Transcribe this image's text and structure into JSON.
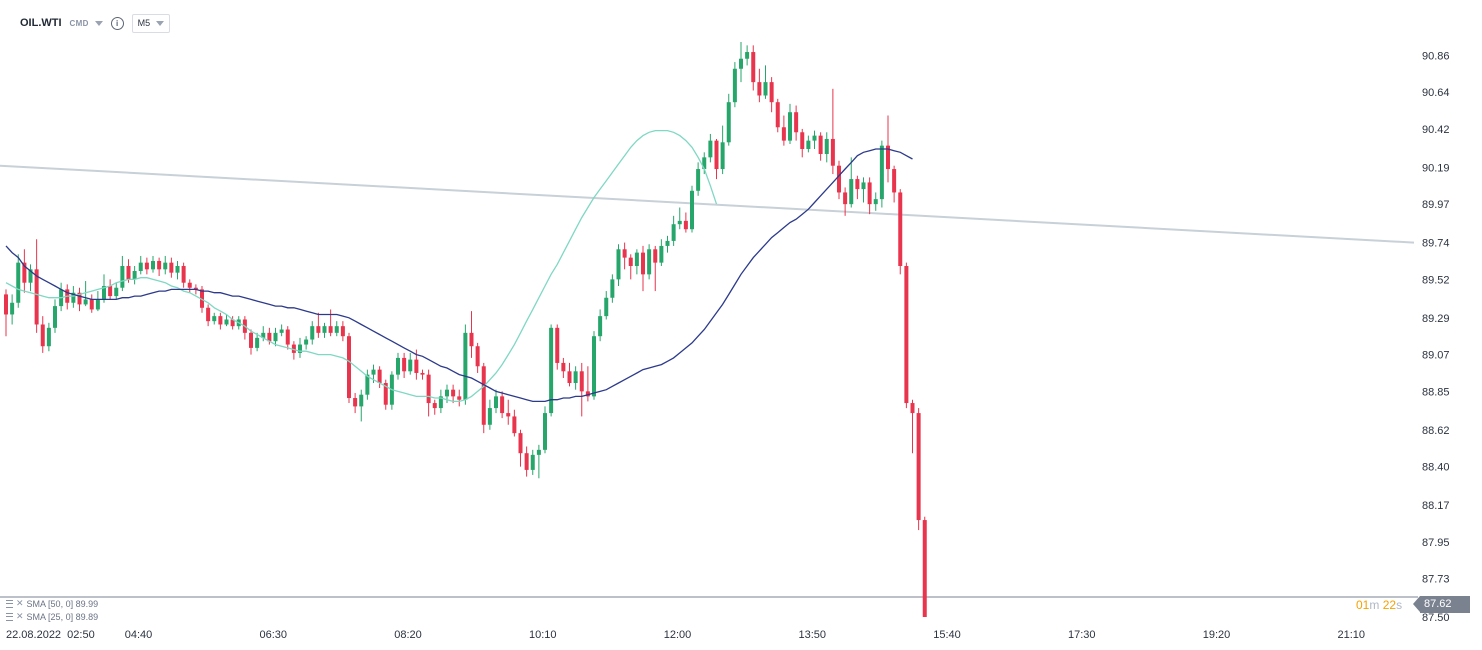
{
  "toolbar": {
    "symbol": "OIL.WTI",
    "market_tag": "CMD",
    "info_icon": "info-icon",
    "timeframe": "M5"
  },
  "legend": {
    "sma1": "SMA [50, 0] 89.99",
    "sma2": "SMA [25, 0] 89.89"
  },
  "countdown": {
    "minutes": "01",
    "m": "m",
    "seconds": "22",
    "s": "s"
  },
  "current_price": "87.62",
  "colors": {
    "up": "#26a66b",
    "down": "#e8344c",
    "sma50": "#2c3a8c",
    "sma25": "#7fd8c2",
    "trendline": "#c8d0d8",
    "price_line": "#7a8290"
  },
  "chart_data": {
    "type": "candlestick",
    "title": "",
    "xlabel": "",
    "ylabel": "",
    "ylim": [
      87.5,
      90.97
    ],
    "y_ticks": [
      "90.86",
      "90.64",
      "90.42",
      "90.19",
      "89.97",
      "89.74",
      "89.52",
      "89.29",
      "89.07",
      "88.85",
      "88.62",
      "88.40",
      "88.17",
      "87.95",
      "87.73",
      "87.50"
    ],
    "x_ticks": [
      "22.08.2022  02:50",
      "04:40",
      "06:30",
      "08:20",
      "10:10",
      "12:00",
      "13:50",
      "15:40",
      "17:30",
      "19:20",
      "21:10"
    ],
    "x_tick_index": [
      0,
      22,
      44,
      66,
      88,
      110,
      132,
      154,
      176,
      198,
      220
    ],
    "candles": [
      [
        89.43,
        89.31,
        89.46,
        89.18
      ],
      [
        89.31,
        89.38,
        89.43,
        89.25
      ],
      [
        89.38,
        89.62,
        89.67,
        89.35
      ],
      [
        89.62,
        89.5,
        89.7,
        89.44
      ],
      [
        89.5,
        89.58,
        89.61,
        89.45
      ],
      [
        89.58,
        89.25,
        89.76,
        89.2
      ],
      [
        89.25,
        89.12,
        89.3,
        89.08
      ],
      [
        89.12,
        89.23,
        89.26,
        89.09
      ],
      [
        89.23,
        89.36,
        89.4,
        89.2
      ],
      [
        89.36,
        89.46,
        89.5,
        89.33
      ],
      [
        89.46,
        89.38,
        89.49,
        89.34
      ],
      [
        89.38,
        89.44,
        89.48,
        89.35
      ],
      [
        89.44,
        89.37,
        89.47,
        89.33
      ],
      [
        89.37,
        89.4,
        89.51,
        89.36
      ],
      [
        89.4,
        89.34,
        89.43,
        89.32
      ],
      [
        89.34,
        89.4,
        89.45,
        89.33
      ],
      [
        89.4,
        89.48,
        89.55,
        89.38
      ],
      [
        89.48,
        89.42,
        89.52,
        89.4
      ],
      [
        89.42,
        89.47,
        89.5,
        89.4
      ],
      [
        89.47,
        89.6,
        89.66,
        89.45
      ],
      [
        89.6,
        89.52,
        89.64,
        89.5
      ],
      [
        89.52,
        89.57,
        89.6,
        89.49
      ],
      [
        89.57,
        89.62,
        89.66,
        89.55
      ],
      [
        89.62,
        89.58,
        89.65,
        89.55
      ],
      [
        89.58,
        89.63,
        89.66,
        89.56
      ],
      [
        89.63,
        89.58,
        89.65,
        89.54
      ],
      [
        89.58,
        89.62,
        89.66,
        89.55
      ],
      [
        89.62,
        89.56,
        89.65,
        89.53
      ],
      [
        89.56,
        89.6,
        89.63,
        89.52
      ],
      [
        89.6,
        89.5,
        89.62,
        89.47
      ],
      [
        89.5,
        89.47,
        89.52,
        89.44
      ],
      [
        89.47,
        89.46,
        89.49,
        89.43
      ],
      [
        89.46,
        89.35,
        89.48,
        89.32
      ],
      [
        89.35,
        89.27,
        89.37,
        89.24
      ],
      [
        89.27,
        89.3,
        89.32,
        89.25
      ],
      [
        89.3,
        89.25,
        89.32,
        89.22
      ],
      [
        89.25,
        89.28,
        89.31,
        89.24
      ],
      [
        89.28,
        89.24,
        89.3,
        89.22
      ],
      [
        89.24,
        89.28,
        89.3,
        89.22
      ],
      [
        89.28,
        89.2,
        89.3,
        89.16
      ],
      [
        89.2,
        89.11,
        89.22,
        89.07
      ],
      [
        89.11,
        89.17,
        89.2,
        89.09
      ],
      [
        89.17,
        89.2,
        89.24,
        89.15
      ],
      [
        89.2,
        89.15,
        89.23,
        89.13
      ],
      [
        89.15,
        89.2,
        89.23,
        89.12
      ],
      [
        89.2,
        89.22,
        89.25,
        89.18
      ],
      [
        89.22,
        89.13,
        89.24,
        89.1
      ],
      [
        89.13,
        89.08,
        89.15,
        89.04
      ],
      [
        89.08,
        89.13,
        89.17,
        89.05
      ],
      [
        89.13,
        89.16,
        89.18,
        89.1
      ],
      [
        89.16,
        89.24,
        89.27,
        89.13
      ],
      [
        89.24,
        89.2,
        89.32,
        89.17
      ],
      [
        89.2,
        89.24,
        89.26,
        89.17
      ],
      [
        89.24,
        89.2,
        89.34,
        89.18
      ],
      [
        89.2,
        89.24,
        89.27,
        89.18
      ],
      [
        89.24,
        89.18,
        89.27,
        89.15
      ],
      [
        89.18,
        88.81,
        89.2,
        88.78
      ],
      [
        88.81,
        88.76,
        88.84,
        88.72
      ],
      [
        88.76,
        88.83,
        88.86,
        88.67
      ],
      [
        88.83,
        88.95,
        88.98,
        88.8
      ],
      [
        88.95,
        88.98,
        89.01,
        88.9
      ],
      [
        88.98,
        88.9,
        89.0,
        88.87
      ],
      [
        88.9,
        88.77,
        88.92,
        88.74
      ],
      [
        88.77,
        88.95,
        88.97,
        88.74
      ],
      [
        88.95,
        89.05,
        89.08,
        88.92
      ],
      [
        89.05,
        88.97,
        89.08,
        88.93
      ],
      [
        88.97,
        89.04,
        89.08,
        88.95
      ],
      [
        89.04,
        88.96,
        89.1,
        88.92
      ],
      [
        88.96,
        88.95,
        88.98,
        88.92
      ],
      [
        88.95,
        88.78,
        88.98,
        88.7
      ],
      [
        88.78,
        88.75,
        88.8,
        88.71
      ],
      [
        88.75,
        88.82,
        88.86,
        88.72
      ],
      [
        88.82,
        88.86,
        88.89,
        88.78
      ],
      [
        88.86,
        88.82,
        88.89,
        88.78
      ],
      [
        88.82,
        88.8,
        88.86,
        88.76
      ],
      [
        88.8,
        89.2,
        89.25,
        88.77
      ],
      [
        89.2,
        89.12,
        89.33,
        89.05
      ],
      [
        89.12,
        89.0,
        89.14,
        88.96
      ],
      [
        89.0,
        88.65,
        89.02,
        88.6
      ],
      [
        88.65,
        88.75,
        88.8,
        88.62
      ],
      [
        88.75,
        88.82,
        88.86,
        88.72
      ],
      [
        88.82,
        88.72,
        88.85,
        88.69
      ],
      [
        88.72,
        88.7,
        88.8,
        88.65
      ],
      [
        88.7,
        88.6,
        88.74,
        88.58
      ],
      [
        88.6,
        88.48,
        88.62,
        88.4
      ],
      [
        88.48,
        88.38,
        88.52,
        88.34
      ],
      [
        88.38,
        88.47,
        88.5,
        88.35
      ],
      [
        88.47,
        88.5,
        88.53,
        88.33
      ],
      [
        88.5,
        88.72,
        88.76,
        88.48
      ],
      [
        88.72,
        89.23,
        89.25,
        88.7
      ],
      [
        89.23,
        89.02,
        89.25,
        88.98
      ],
      [
        89.02,
        88.97,
        89.05,
        88.93
      ],
      [
        88.97,
        88.9,
        89.02,
        88.88
      ],
      [
        88.9,
        88.97,
        89.0,
        88.86
      ],
      [
        88.97,
        88.85,
        89.02,
        88.7
      ],
      [
        88.85,
        88.82,
        89.0,
        88.79
      ],
      [
        88.82,
        89.18,
        89.21,
        88.8
      ],
      [
        89.18,
        89.3,
        89.34,
        89.15
      ],
      [
        89.3,
        89.41,
        89.45,
        89.28
      ],
      [
        89.41,
        89.52,
        89.55,
        89.38
      ],
      [
        89.52,
        89.7,
        89.73,
        89.48
      ],
      [
        89.7,
        89.65,
        89.74,
        89.58
      ],
      [
        89.65,
        89.6,
        89.67,
        89.52
      ],
      [
        89.6,
        89.68,
        89.7,
        89.55
      ],
      [
        89.68,
        89.55,
        89.72,
        89.45
      ],
      [
        89.55,
        89.7,
        89.73,
        89.52
      ],
      [
        89.7,
        89.62,
        89.72,
        89.45
      ],
      [
        89.62,
        89.72,
        89.76,
        89.6
      ],
      [
        89.72,
        89.75,
        89.78,
        89.68
      ],
      [
        89.75,
        89.85,
        89.9,
        89.72
      ],
      [
        89.85,
        89.87,
        89.95,
        89.82
      ],
      [
        89.87,
        89.82,
        89.92,
        89.8
      ],
      [
        89.82,
        90.05,
        90.08,
        89.8
      ],
      [
        90.05,
        90.18,
        90.22,
        90.02
      ],
      [
        90.18,
        90.25,
        90.28,
        90.15
      ],
      [
        90.25,
        90.35,
        90.39,
        90.22
      ],
      [
        90.35,
        90.18,
        90.36,
        90.12
      ],
      [
        90.18,
        90.34,
        90.44,
        90.15
      ],
      [
        90.34,
        90.58,
        90.63,
        90.32
      ],
      [
        90.58,
        90.78,
        90.82,
        90.55
      ],
      [
        90.78,
        90.84,
        90.94,
        90.7
      ],
      [
        90.84,
        90.88,
        90.92,
        90.8
      ],
      [
        90.88,
        90.7,
        90.92,
        90.65
      ],
      [
        90.7,
        90.62,
        90.78,
        90.58
      ],
      [
        90.62,
        90.7,
        90.8,
        90.6
      ],
      [
        90.7,
        90.58,
        90.73,
        90.52
      ],
      [
        90.58,
        90.43,
        90.6,
        90.4
      ],
      [
        90.43,
        90.35,
        90.5,
        90.32
      ],
      [
        90.35,
        90.52,
        90.57,
        90.33
      ],
      [
        90.52,
        90.4,
        90.56,
        90.35
      ],
      [
        90.4,
        90.3,
        90.42,
        90.25
      ],
      [
        90.3,
        90.35,
        90.38,
        90.28
      ],
      [
        90.35,
        90.38,
        90.41,
        90.3
      ],
      [
        90.38,
        90.27,
        90.4,
        90.23
      ],
      [
        90.27,
        90.36,
        90.4,
        90.22
      ],
      [
        90.36,
        90.2,
        90.66,
        90.15
      ],
      [
        90.2,
        90.04,
        90.23,
        90.0
      ],
      [
        90.04,
        89.97,
        90.07,
        89.9
      ],
      [
        89.97,
        90.12,
        90.25,
        89.95
      ],
      [
        90.12,
        90.06,
        90.14,
        90.0
      ],
      [
        90.06,
        90.1,
        90.13,
        89.98
      ],
      [
        90.1,
        89.97,
        90.13,
        89.91
      ],
      [
        89.97,
        90.0,
        90.04,
        89.93
      ],
      [
        90.0,
        90.32,
        90.35,
        89.95
      ],
      [
        90.32,
        90.18,
        90.5,
        90.1
      ],
      [
        90.18,
        90.04,
        90.2,
        89.98
      ],
      [
        90.04,
        89.6,
        90.06,
        89.55
      ],
      [
        89.6,
        88.78,
        89.62,
        88.75
      ],
      [
        88.78,
        88.72,
        88.8,
        88.48
      ],
      [
        88.72,
        88.08,
        88.75,
        88.02
      ],
      [
        88.08,
        87.5,
        88.1,
        87.5
      ]
    ],
    "sma50": [
      89.72,
      89.68,
      89.65,
      89.6,
      89.57,
      89.54,
      89.52,
      89.5,
      89.48,
      89.46,
      89.44,
      89.43,
      89.42,
      89.41,
      89.4,
      89.4,
      89.4,
      89.4,
      89.4,
      89.41,
      89.41,
      89.42,
      89.42,
      89.43,
      89.44,
      89.45,
      89.45,
      89.46,
      89.46,
      89.46,
      89.46,
      89.46,
      89.45,
      89.45,
      89.44,
      89.44,
      89.43,
      89.42,
      89.42,
      89.41,
      89.4,
      89.39,
      89.38,
      89.37,
      89.36,
      89.36,
      89.35,
      89.35,
      89.34,
      89.33,
      89.32,
      89.31,
      89.31,
      89.31,
      89.31,
      89.3,
      89.29,
      89.27,
      89.25,
      89.23,
      89.21,
      89.19,
      89.17,
      89.15,
      89.13,
      89.11,
      89.09,
      89.07,
      89.06,
      89.04,
      89.02,
      89.0,
      88.99,
      88.97,
      88.95,
      88.94,
      88.93,
      88.91,
      88.89,
      88.87,
      88.85,
      88.84,
      88.83,
      88.82,
      88.81,
      88.8,
      88.79,
      88.79,
      88.79,
      88.8,
      88.8,
      88.81,
      88.81,
      88.82,
      88.82,
      88.83,
      88.84,
      88.85,
      88.86,
      88.88,
      88.9,
      88.92,
      88.94,
      88.96,
      88.98,
      88.99,
      89.0,
      89.01,
      89.03,
      89.05,
      89.08,
      89.11,
      89.14,
      89.18,
      89.22,
      89.27,
      89.32,
      89.37,
      89.43,
      89.49,
      89.55,
      89.6,
      89.65,
      89.69,
      89.73,
      89.77,
      89.8,
      89.83,
      89.86,
      89.88,
      89.91,
      89.94,
      89.98,
      90.02,
      90.06,
      90.1,
      90.14,
      90.18,
      90.22,
      90.26,
      90.28,
      90.29,
      90.3,
      90.3,
      90.3,
      90.29,
      90.28,
      90.26,
      90.24
    ],
    "sma25": [
      89.5,
      89.48,
      89.46,
      89.45,
      89.44,
      89.43,
      89.42,
      89.41,
      89.41,
      89.41,
      89.42,
      89.42,
      89.43,
      89.44,
      89.45,
      89.46,
      89.47,
      89.48,
      89.5,
      89.51,
      89.52,
      89.52,
      89.53,
      89.53,
      89.52,
      89.51,
      89.5,
      89.48,
      89.47,
      89.45,
      89.44,
      89.42,
      89.4,
      89.38,
      89.35,
      89.33,
      89.31,
      89.28,
      89.26,
      89.24,
      89.21,
      89.19,
      89.17,
      89.15,
      89.13,
      89.12,
      89.11,
      89.1,
      89.09,
      89.09,
      89.08,
      89.07,
      89.07,
      89.07,
      89.06,
      89.05,
      89.03,
      89.0,
      88.97,
      88.94,
      88.92,
      88.9,
      88.88,
      88.86,
      88.85,
      88.84,
      88.83,
      88.82,
      88.82,
      88.82,
      88.81,
      88.81,
      88.8,
      88.79,
      88.79,
      88.8,
      88.82,
      88.85,
      88.88,
      88.92,
      88.96,
      89.01,
      89.07,
      89.13,
      89.2,
      89.27,
      89.34,
      89.41,
      89.48,
      89.55,
      89.61,
      89.68,
      89.75,
      89.82,
      89.89,
      89.95,
      90.01,
      90.06,
      90.11,
      90.16,
      90.21,
      90.26,
      90.31,
      90.35,
      90.38,
      90.4,
      90.41,
      90.41,
      90.41,
      90.4,
      90.38,
      90.35,
      90.31,
      90.25,
      90.18,
      90.08,
      89.97
    ]
  }
}
